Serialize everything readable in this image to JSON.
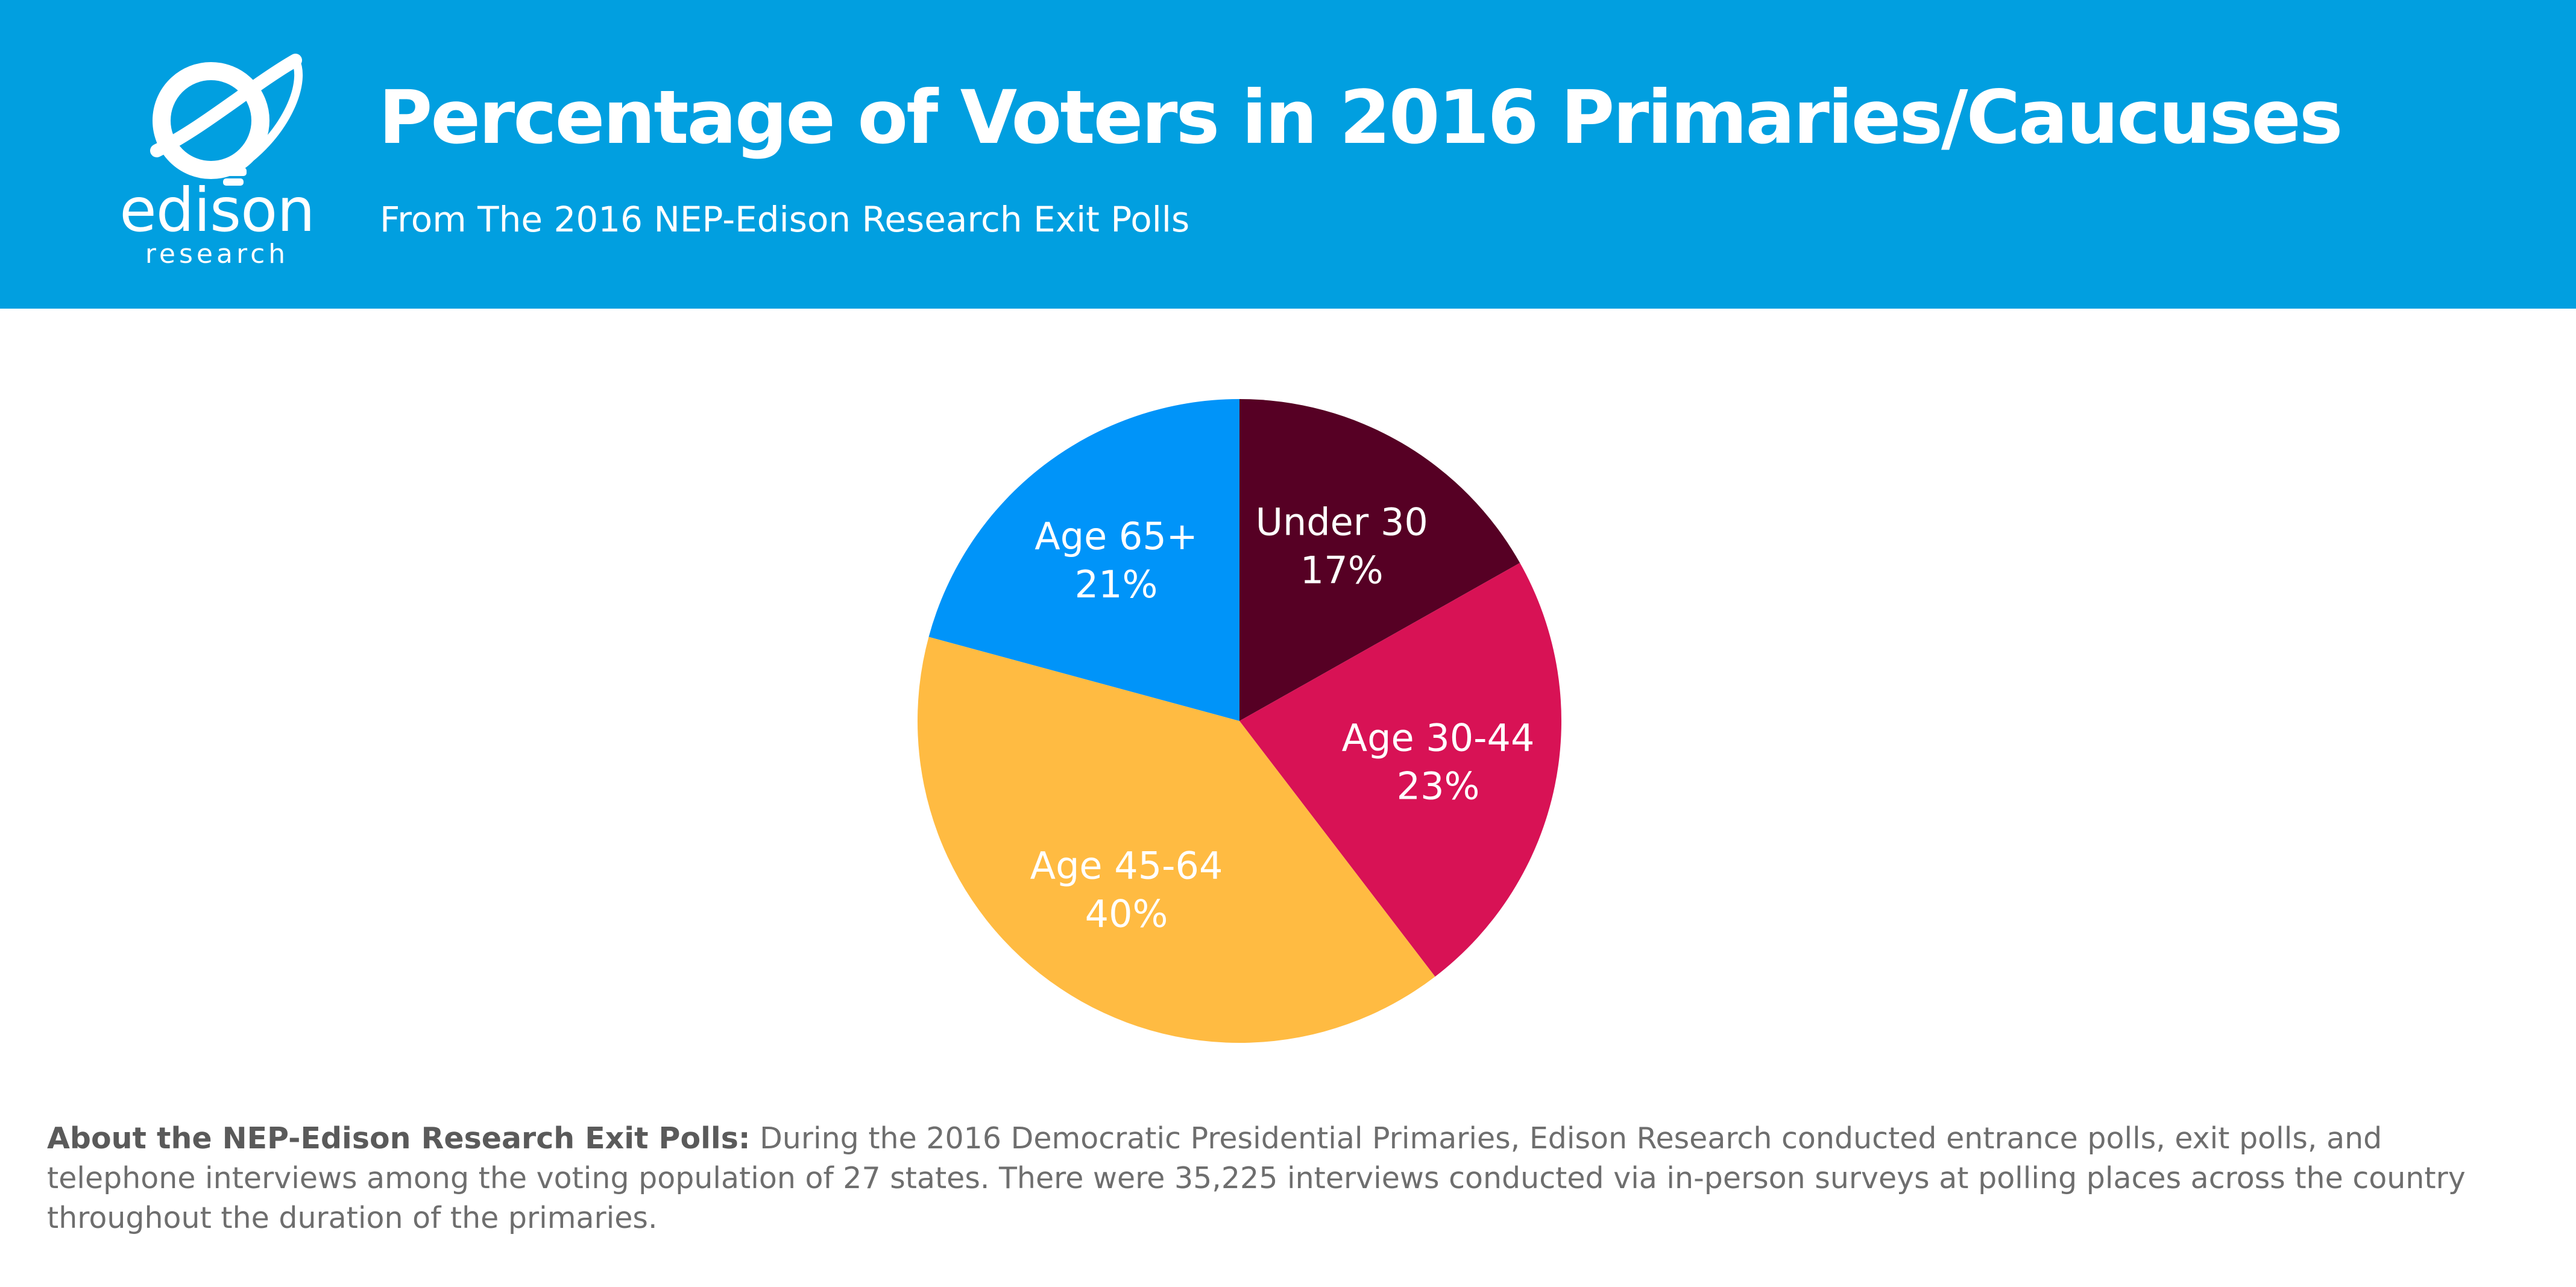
{
  "brand": {
    "name": "edison",
    "tagline": "research"
  },
  "header": {
    "title": "Percentage of Voters in 2016 Primaries/Caucuses",
    "subtitle": "From The 2016 NEP-Edison Research Exit Polls"
  },
  "colors": {
    "header_bg": "#019fe0",
    "under_30": "#560024",
    "age_30_44": "#d81255",
    "age_45_64": "#ffbb42",
    "age_65_plus": "#0094f9"
  },
  "chart_data": {
    "type": "pie",
    "title": "Percentage of Voters in 2016 Primaries/Caucuses",
    "start_angle_deg": 0,
    "direction": "clockwise",
    "slices": [
      {
        "label": "Under 30",
        "value": 17,
        "display": "17%",
        "color": "#560024"
      },
      {
        "label": "Age 30-44",
        "value": 23,
        "display": "23%",
        "color": "#d81255"
      },
      {
        "label": "Age 45-64",
        "value": 40,
        "display": "40%",
        "color": "#ffbb42"
      },
      {
        "label": "Age 65+",
        "value": 21,
        "display": "21%",
        "color": "#0094f9"
      }
    ]
  },
  "footer": {
    "heading": "About the NEP-Edison Research Exit Polls:",
    "text": "During the 2016 Democratic Presidential Primaries, Edison Research conducted entrance polls, exit polls, and telephone interviews among the voting population of 27 states. There were 35,225 interviews conducted via in-person surveys at polling places across the country throughout the duration of the primaries."
  }
}
